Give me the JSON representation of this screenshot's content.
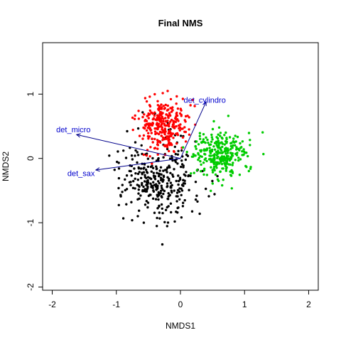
{
  "chart_data": {
    "type": "scatter",
    "title": "Final NMS",
    "xlabel": "NMDS1",
    "ylabel": "NMDS2",
    "xlim": [
      -2.15,
      2.15
    ],
    "ylim": [
      -2.05,
      1.8
    ],
    "x_ticks": [
      -2,
      -1,
      0,
      1,
      2
    ],
    "y_ticks": [
      -2,
      -1,
      0,
      1
    ],
    "x_tick_labels": [
      "-2",
      "-1",
      "0",
      "1",
      "2"
    ],
    "y_tick_labels": [
      "-2",
      "-1",
      "0",
      "1"
    ],
    "series": [
      {
        "name": "black cluster",
        "color": "#000000",
        "center": [
          -0.33,
          -0.33
        ],
        "spread": [
          0.3,
          0.32
        ],
        "count": 330,
        "seed": 7
      },
      {
        "name": "red cluster",
        "color": "#ff0000",
        "center": [
          -0.28,
          0.53
        ],
        "spread": [
          0.2,
          0.2
        ],
        "count": 290,
        "seed": 19
      },
      {
        "name": "green cluster",
        "color": "#00cc00",
        "center": [
          0.62,
          0.04
        ],
        "spread": [
          0.2,
          0.19
        ],
        "count": 300,
        "seed": 43
      }
    ],
    "vectors": [
      {
        "label": "det_cylindro",
        "x": 0.4,
        "y": 0.88,
        "label_x": 0.05,
        "label_y": 0.9,
        "label_anchor": "start"
      },
      {
        "label": "det_micro",
        "x": -1.62,
        "y": 0.37,
        "label_x": -1.67,
        "label_y": 0.44,
        "label_anchor": "middle"
      },
      {
        "label": "det_sax",
        "x": -1.32,
        "y": -0.18,
        "label_x": -1.55,
        "label_y": -0.24,
        "label_anchor": "middle"
      }
    ],
    "vector_color": "#00008b",
    "vector_origin": [
      0,
      0
    ]
  }
}
